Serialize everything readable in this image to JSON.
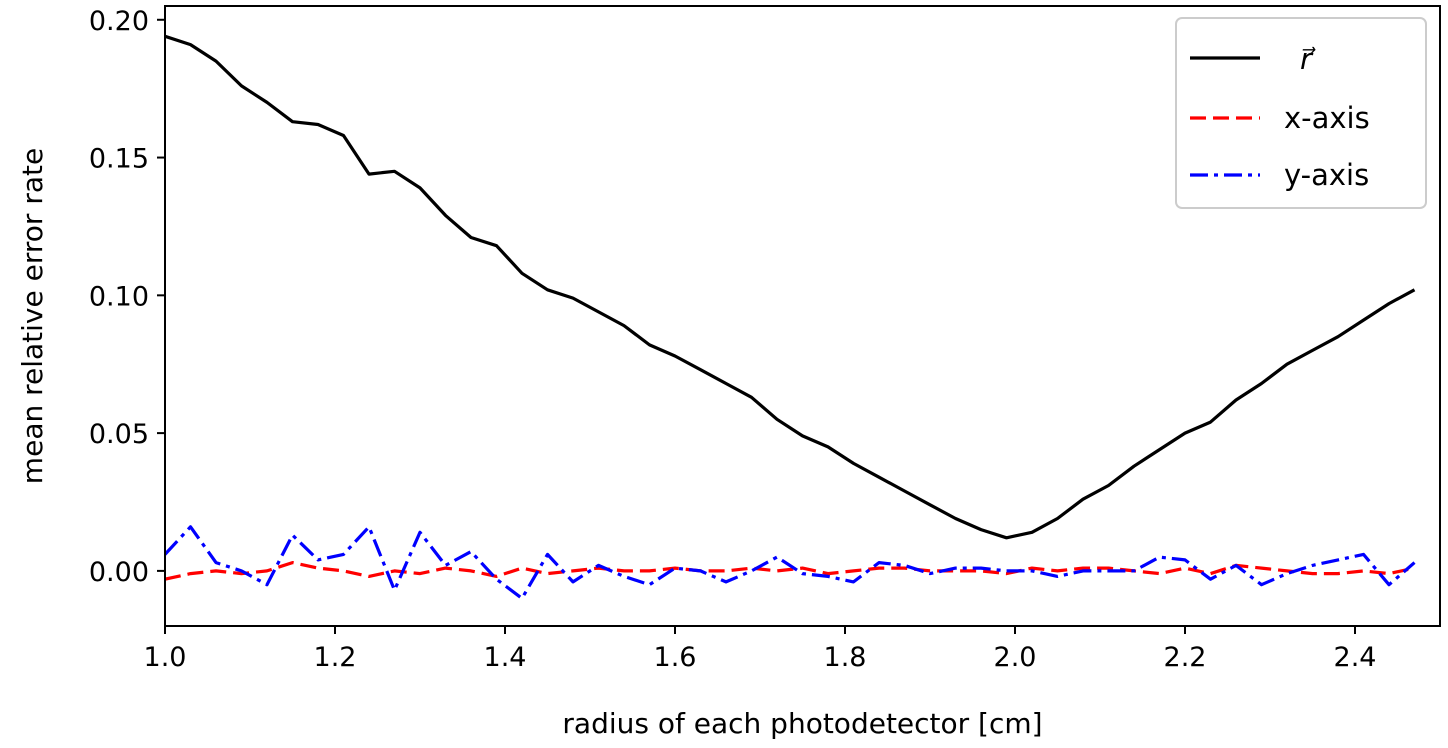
{
  "chart_data": {
    "type": "line",
    "title": "",
    "xlabel": "radius of each photodetector [cm]",
    "ylabel": "mean relative error rate",
    "xlim": [
      1.0,
      2.5
    ],
    "ylim": [
      -0.02,
      0.205
    ],
    "xticks": [
      1.0,
      1.2,
      1.4,
      1.6,
      1.8,
      2.0,
      2.2,
      2.4
    ],
    "xtick_labels": [
      "1.0",
      "1.2",
      "1.4",
      "1.6",
      "1.8",
      "2.0",
      "2.2",
      "2.4"
    ],
    "yticks": [
      0.0,
      0.05,
      0.1,
      0.15,
      0.2
    ],
    "ytick_labels": [
      "0.00",
      "0.05",
      "0.10",
      "0.15",
      "0.20"
    ],
    "grid": false,
    "legend_position": "top-right",
    "x": [
      1.0,
      1.03,
      1.06,
      1.09,
      1.12,
      1.15,
      1.18,
      1.21,
      1.24,
      1.27,
      1.3,
      1.33,
      1.36,
      1.39,
      1.42,
      1.45,
      1.48,
      1.51,
      1.54,
      1.57,
      1.6,
      1.63,
      1.66,
      1.69,
      1.72,
      1.75,
      1.78,
      1.81,
      1.84,
      1.87,
      1.9,
      1.93,
      1.96,
      1.99,
      2.02,
      2.05,
      2.08,
      2.11,
      2.14,
      2.17,
      2.2,
      2.23,
      2.26,
      2.29,
      2.32,
      2.35,
      2.38,
      2.41,
      2.44,
      2.47
    ],
    "series": [
      {
        "name": "r⃗",
        "color": "#000000",
        "style": "solid",
        "values": [
          0.194,
          0.191,
          0.185,
          0.176,
          0.17,
          0.163,
          0.162,
          0.158,
          0.144,
          0.145,
          0.139,
          0.129,
          0.121,
          0.118,
          0.108,
          0.102,
          0.099,
          0.094,
          0.089,
          0.082,
          0.078,
          0.073,
          0.068,
          0.063,
          0.055,
          0.049,
          0.045,
          0.039,
          0.034,
          0.029,
          0.024,
          0.019,
          0.015,
          0.012,
          0.014,
          0.019,
          0.026,
          0.031,
          0.038,
          0.044,
          0.05,
          0.054,
          0.062,
          0.068,
          0.075,
          0.08,
          0.085,
          0.091,
          0.097,
          0.102
        ]
      },
      {
        "name": "x-axis",
        "color": "#ff0000",
        "style": "dashed",
        "values": [
          -0.003,
          -0.001,
          0.0,
          -0.001,
          0.0,
          0.003,
          0.001,
          0.0,
          -0.002,
          0.0,
          -0.001,
          0.001,
          0.0,
          -0.002,
          0.001,
          -0.001,
          0.0,
          0.001,
          0.0,
          0.0,
          0.001,
          0.0,
          0.0,
          0.001,
          0.0,
          0.001,
          -0.001,
          0.0,
          0.001,
          0.001,
          0.0,
          0.0,
          0.0,
          -0.001,
          0.001,
          0.0,
          0.001,
          0.001,
          0.0,
          -0.001,
          0.001,
          -0.001,
          0.002,
          0.001,
          0.0,
          -0.001,
          -0.001,
          0.0,
          -0.001,
          0.001
        ]
      },
      {
        "name": "y-axis",
        "color": "#0000ff",
        "style": "dashdot",
        "values": [
          0.006,
          0.016,
          0.003,
          0.0,
          -0.005,
          0.013,
          0.004,
          0.006,
          0.016,
          -0.007,
          0.014,
          0.002,
          0.007,
          -0.003,
          -0.01,
          0.006,
          -0.004,
          0.002,
          -0.002,
          -0.005,
          0.001,
          0.0,
          -0.004,
          0.0,
          0.005,
          -0.001,
          -0.002,
          -0.004,
          0.003,
          0.002,
          -0.001,
          0.001,
          0.001,
          0.0,
          0.0,
          -0.002,
          0.0,
          0.0,
          0.0,
          0.005,
          0.004,
          -0.003,
          0.002,
          -0.005,
          -0.001,
          0.002,
          0.004,
          0.006,
          -0.005,
          0.003
        ]
      }
    ]
  }
}
